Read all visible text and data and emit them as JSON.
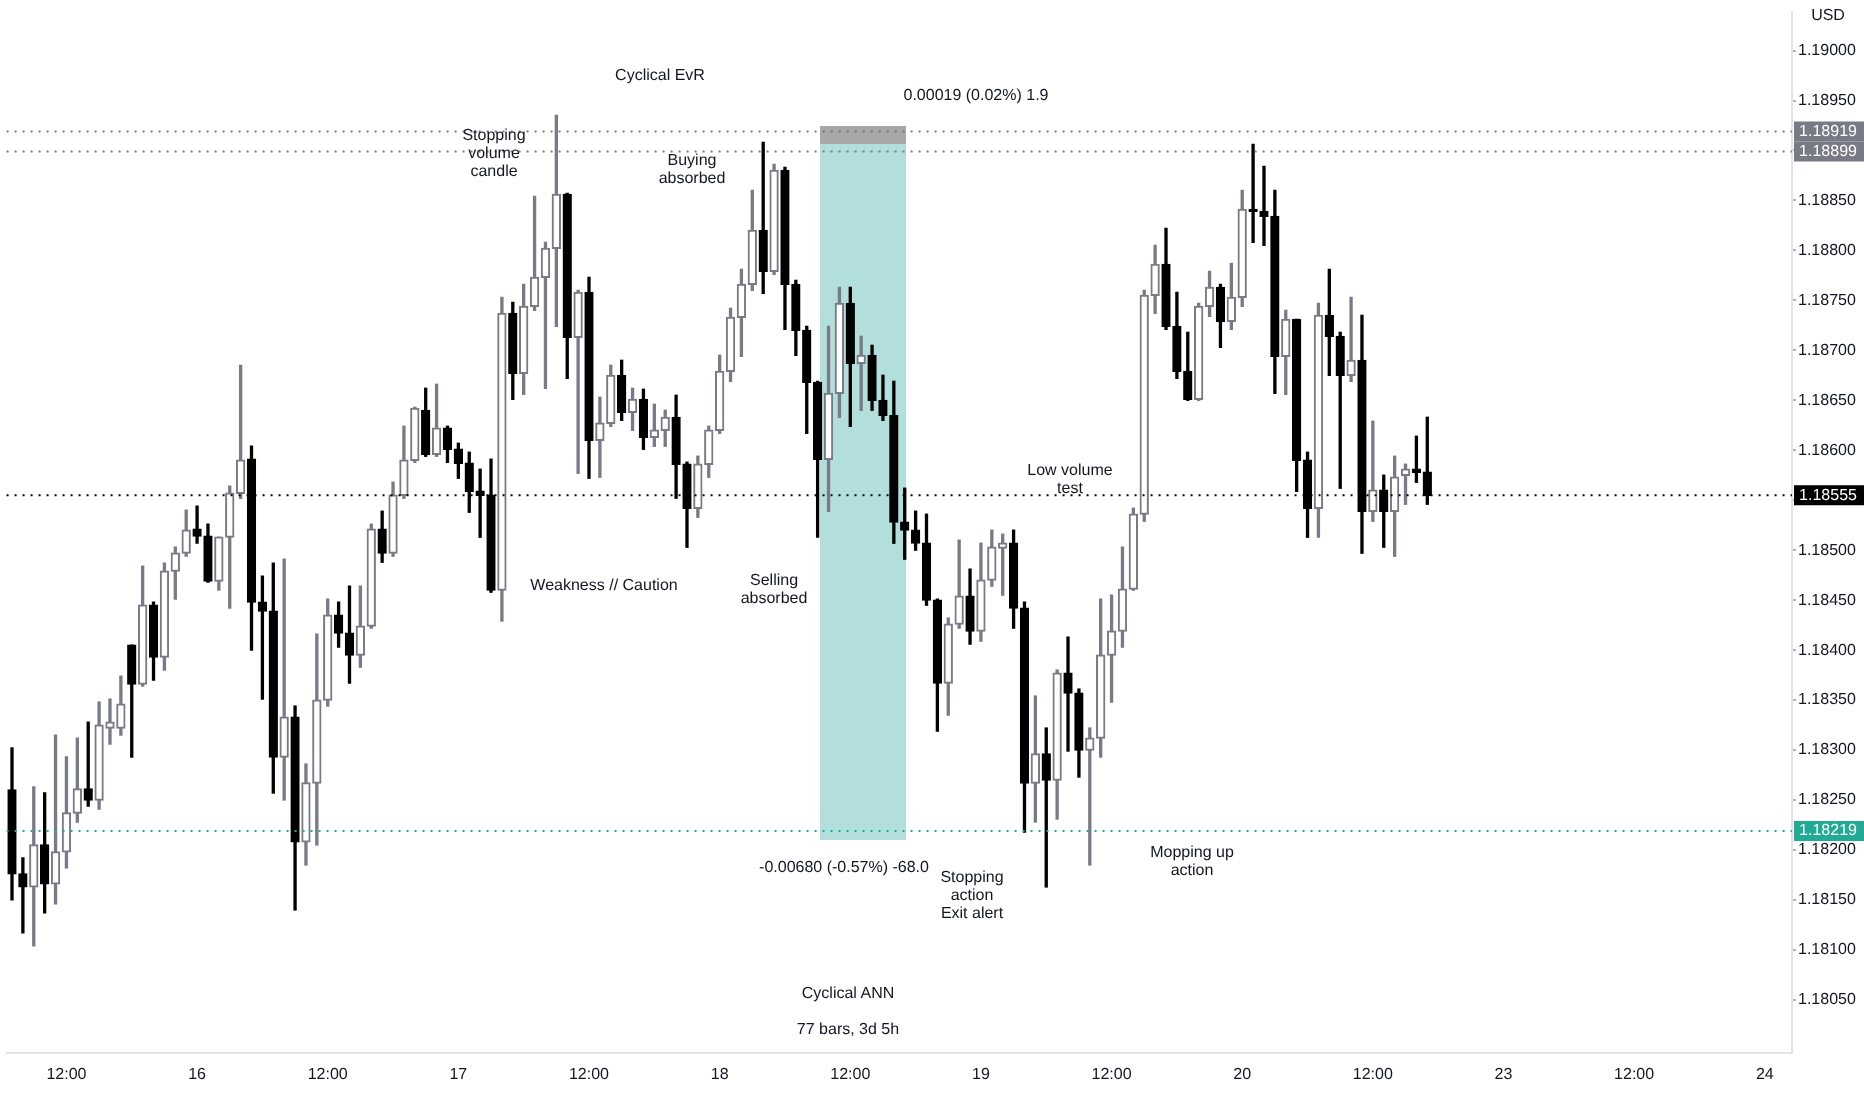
{
  "chart_data": {
    "type": "candlestick",
    "ylabel": "USD",
    "categories": [
      null,
      null,
      null,
      null,
      null,
      "12:00",
      null,
      null,
      null,
      null,
      null,
      null,
      null,
      null,
      null,
      null,
      null,
      "16",
      null,
      null,
      null,
      null,
      null,
      null,
      null,
      null,
      null,
      null,
      null,
      "12:00",
      null,
      null,
      null,
      null,
      null,
      null,
      null,
      null,
      null,
      null,
      null,
      "17",
      null,
      null,
      null,
      null,
      null,
      null,
      null,
      null,
      null,
      null,
      null,
      "12:00",
      null,
      null,
      null,
      null,
      null,
      null,
      null,
      null,
      null,
      null,
      null,
      "18",
      null,
      null,
      null,
      null,
      null,
      null,
      null,
      null,
      null,
      null,
      null,
      "12:00",
      null,
      null,
      null,
      null,
      null,
      null,
      null,
      null,
      null,
      null,
      null,
      "19",
      null,
      null,
      null,
      null,
      null,
      null,
      null,
      null,
      null,
      null,
      null,
      "12:00",
      null,
      null,
      null,
      null,
      null,
      null,
      null,
      null,
      null,
      null,
      null,
      "20",
      null,
      null,
      null,
      null,
      null,
      null,
      null,
      null,
      null,
      null,
      null,
      "12:00",
      null,
      null,
      null,
      null,
      null,
      null,
      null,
      null,
      null,
      null,
      null,
      "23",
      null,
      null,
      null,
      null,
      null,
      null,
      null,
      null,
      null,
      null,
      null,
      "12:00",
      null,
      null,
      null,
      null,
      null,
      null,
      null,
      null,
      null,
      null,
      null,
      "24",
      null,
      null
    ],
    "ohlc": [
      [
        1.1826,
        1.18302,
        1.1815,
        1.18176
      ],
      [
        1.18176,
        1.18192,
        1.18117,
        1.18163
      ],
      [
        1.18163,
        1.18263,
        1.18104,
        1.18205
      ],
      [
        1.18205,
        1.18257,
        1.18137,
        1.18166
      ],
      [
        1.18166,
        1.18315,
        1.18146,
        1.18198
      ],
      [
        1.18198,
        1.18293,
        1.18182,
        1.18237
      ],
      [
        1.18237,
        1.18312,
        1.18228,
        1.18261
      ],
      [
        1.18261,
        1.18328,
        1.18244,
        1.1825
      ],
      [
        1.1825,
        1.18348,
        1.18241,
        1.18325
      ],
      [
        1.18322,
        1.18351,
        1.18306,
        1.18328
      ],
      [
        1.18322,
        1.18374,
        1.18315,
        1.18346
      ],
      [
        1.18405,
        1.18405,
        1.18293,
        1.18366
      ],
      [
        1.18366,
        1.18484,
        1.18364,
        1.18445
      ],
      [
        1.18445,
        1.18448,
        1.1837,
        1.18393
      ],
      [
        1.18393,
        1.18487,
        1.1838,
        1.18479
      ],
      [
        1.18479,
        1.18503,
        1.18451,
        1.18497
      ],
      [
        1.18497,
        1.1854,
        1.18494,
        1.1852
      ],
      [
        1.18521,
        1.18544,
        1.18507,
        1.18514
      ],
      [
        1.18514,
        1.18526,
        1.18468,
        1.18469
      ],
      [
        1.18469,
        1.18513,
        1.1846,
        1.18513
      ],
      [
        1.18513,
        1.18564,
        1.18442,
        1.18557
      ],
      [
        1.18557,
        1.18685,
        1.18552,
        1.1859
      ],
      [
        1.18591,
        1.18604,
        1.184,
        1.18448
      ],
      [
        1.18448,
        1.18474,
        1.18351,
        1.18439
      ],
      [
        1.18439,
        1.18487,
        1.18257,
        1.18293
      ],
      [
        1.18293,
        1.18491,
        1.1825,
        1.18333
      ],
      [
        1.18333,
        1.18344,
        1.1814,
        1.18208
      ],
      [
        1.18208,
        1.18286,
        1.18185,
        1.18267
      ],
      [
        1.18267,
        1.18416,
        1.18205,
        1.1835
      ],
      [
        1.1835,
        1.18451,
        1.18344,
        1.18435
      ],
      [
        1.18435,
        1.18448,
        1.18403,
        1.18417
      ],
      [
        1.18417,
        1.18464,
        1.18367,
        1.18395
      ],
      [
        1.18395,
        1.18464,
        1.18383,
        1.18424
      ],
      [
        1.18424,
        1.18526,
        1.18422,
        1.18521
      ],
      [
        1.18521,
        1.18539,
        1.18488,
        1.18497
      ],
      [
        1.18497,
        1.18568,
        1.18494,
        1.18555
      ],
      [
        1.18555,
        1.18624,
        1.18552,
        1.1859
      ],
      [
        1.1859,
        1.18643,
        1.18588,
        1.18642
      ],
      [
        1.1864,
        1.18662,
        1.18594,
        1.18596
      ],
      [
        1.18596,
        1.18666,
        1.18594,
        1.18622
      ],
      [
        1.18622,
        1.18624,
        1.18588,
        1.18601
      ],
      [
        1.18601,
        1.18607,
        1.18572,
        1.18587
      ],
      [
        1.18587,
        1.18598,
        1.18538,
        1.18559
      ],
      [
        1.18559,
        1.18581,
        1.18513,
        1.18555
      ],
      [
        1.18555,
        1.18591,
        1.18458,
        1.1846
      ],
      [
        1.1846,
        1.18753,
        1.18429,
        1.18737
      ],
      [
        1.18737,
        1.18748,
        1.18651,
        1.18677
      ],
      [
        1.18677,
        1.18766,
        1.18656,
        1.18744
      ],
      [
        1.18744,
        1.18854,
        1.1874,
        1.18773
      ],
      [
        1.18773,
        1.18808,
        1.18662,
        1.18802
      ],
      [
        1.18802,
        1.18935,
        1.18724,
        1.18856
      ],
      [
        1.18856,
        1.18857,
        1.18672,
        1.18713
      ],
      [
        1.18713,
        1.1876,
        1.18577,
        1.18758
      ],
      [
        1.18758,
        1.18773,
        1.18572,
        1.1861
      ],
      [
        1.1861,
        1.18653,
        1.18573,
        1.18627
      ],
      [
        1.18627,
        1.18685,
        1.18624,
        1.18675
      ],
      [
        1.18675,
        1.1869,
        1.1863,
        1.18638
      ],
      [
        1.18638,
        1.18662,
        1.1862,
        1.18651
      ],
      [
        1.18651,
        1.18661,
        1.18601,
        1.18613
      ],
      [
        1.18613,
        1.18646,
        1.18604,
        1.1862
      ],
      [
        1.1862,
        1.1864,
        1.18604,
        1.18633
      ],
      [
        1.18633,
        1.18655,
        1.18552,
        1.18586
      ],
      [
        1.18586,
        1.18588,
        1.18503,
        1.18542
      ],
      [
        1.18542,
        1.18594,
        1.18533,
        1.18586
      ],
      [
        1.18586,
        1.18624,
        1.18573,
        1.1862
      ],
      [
        1.1862,
        1.18695,
        1.18617,
        1.18679
      ],
      [
        1.18679,
        1.18742,
        1.18669,
        1.18733
      ],
      [
        1.18733,
        1.18781,
        1.18694,
        1.18766
      ],
      [
        1.18766,
        1.1886,
        1.1876,
        1.1882
      ],
      [
        1.1882,
        1.18908,
        1.18757,
        1.18779
      ],
      [
        1.18779,
        1.18886,
        1.18776,
        1.1888
      ],
      [
        1.1888,
        1.18883,
        1.18721,
        1.18766
      ],
      [
        1.18766,
        1.1877,
        1.18695,
        1.1872
      ],
      [
        1.1872,
        1.18724,
        1.18617,
        1.18668
      ],
      [
        1.18668,
        1.18669,
        1.18513,
        1.18591
      ],
      [
        1.18591,
        1.18724,
        1.18539,
        1.18657
      ],
      [
        1.18657,
        1.18763,
        1.18633,
        1.18747
      ],
      [
        1.18747,
        1.18763,
        1.18624,
        1.18687
      ],
      [
        1.18687,
        1.18714,
        1.1864,
        1.18695
      ],
      [
        1.18695,
        1.18705,
        1.1864,
        1.1865
      ],
      [
        1.1865,
        1.18675,
        1.1863,
        1.18635
      ],
      [
        1.18635,
        1.18669,
        1.18507,
        1.18528
      ],
      [
        1.18528,
        1.18562,
        1.18491,
        1.1852
      ],
      [
        1.1852,
        1.18539,
        1.185,
        1.18507
      ],
      [
        1.18507,
        1.18536,
        1.18445,
        1.1845
      ],
      [
        1.1845,
        1.18451,
        1.18319,
        1.18367
      ],
      [
        1.18367,
        1.18432,
        1.18335,
        1.18426
      ],
      [
        1.18426,
        1.1851,
        1.18422,
        1.18454
      ],
      [
        1.18454,
        1.18481,
        1.18406,
        1.18419
      ],
      [
        1.18419,
        1.18507,
        1.18409,
        1.1847
      ],
      [
        1.1847,
        1.1852,
        1.18464,
        1.18503
      ],
      [
        1.18502,
        1.18516,
        1.18455,
        1.18507
      ],
      [
        1.18507,
        1.1852,
        1.18422,
        1.18442
      ],
      [
        1.18442,
        1.18448,
        1.18218,
        1.18267
      ],
      [
        1.18267,
        1.18354,
        1.18228,
        1.18296
      ],
      [
        1.18296,
        1.18322,
        1.18163,
        1.1827
      ],
      [
        1.1827,
        1.1838,
        1.18231,
        1.18377
      ],
      [
        1.18377,
        1.18413,
        1.18299,
        1.18357
      ],
      [
        1.18357,
        1.18361,
        1.18273,
        1.183
      ],
      [
        1.183,
        1.18322,
        1.18185,
        1.18312
      ],
      [
        1.18312,
        1.18451,
        1.18293,
        1.18395
      ],
      [
        1.18395,
        1.18455,
        1.18348,
        1.18419
      ],
      [
        1.18419,
        1.18503,
        1.18403,
        1.18461
      ],
      [
        1.18461,
        1.18542,
        1.1846,
        1.18536
      ],
      [
        1.18536,
        1.1876,
        1.18529,
        1.18755
      ],
      [
        1.18755,
        1.18805,
        1.18737,
        1.18786
      ],
      [
        1.18786,
        1.18822,
        1.18721,
        1.18724
      ],
      [
        1.18724,
        1.18758,
        1.18672,
        1.18679
      ],
      [
        1.18679,
        1.18718,
        1.1865,
        1.18651
      ],
      [
        1.18651,
        1.18747,
        1.1865,
        1.18744
      ],
      [
        1.18744,
        1.18779,
        1.18734,
        1.18763
      ],
      [
        1.18763,
        1.18766,
        1.18703,
        1.18729
      ],
      [
        1.18729,
        1.18787,
        1.18721,
        1.18753
      ],
      [
        1.18753,
        1.1886,
        1.18744,
        1.18841
      ],
      [
        1.18841,
        1.18906,
        1.18808,
        1.18839
      ],
      [
        1.18839,
        1.18884,
        1.18805,
        1.18834
      ],
      [
        1.18834,
        1.1886,
        1.18657,
        1.18694
      ],
      [
        1.18694,
        1.1874,
        1.18656,
        1.18731
      ],
      [
        1.18731,
        1.18731,
        1.18559,
        1.1859
      ],
      [
        1.1859,
        1.18598,
        1.18513,
        1.18542
      ],
      [
        1.18542,
        1.18747,
        1.18513,
        1.18735
      ],
      [
        1.18735,
        1.18781,
        1.18675,
        1.18714
      ],
      [
        1.18714,
        1.18718,
        1.18562,
        1.18675
      ],
      [
        1.18675,
        1.18753,
        1.18669,
        1.1869
      ],
      [
        1.1869,
        1.18735,
        1.18497,
        1.18539
      ],
      [
        1.18539,
        1.18629,
        1.18529,
        1.1856
      ],
      [
        1.1856,
        1.18575,
        1.18503,
        1.18539
      ],
      [
        1.18539,
        1.18594,
        1.18494,
        1.18573
      ],
      [
        1.18575,
        1.18586,
        1.18546,
        1.18581
      ],
      [
        1.18581,
        1.18614,
        1.18568,
        1.18578
      ],
      [
        1.18578,
        1.18633,
        1.18546,
        1.18555
      ],
      null,
      null,
      null,
      null,
      null,
      null,
      null,
      null,
      null,
      null,
      null,
      null,
      null,
      null,
      null,
      null,
      null,
      null,
      null,
      null,
      null,
      null,
      null,
      null,
      null,
      null,
      null,
      null,
      null,
      null,
      null,
      null,
      null
    ],
    "ylim": [
      1.17997,
      1.19039
    ],
    "yticks": [
      {
        "value": 1.1805,
        "label": "1.18050"
      },
      {
        "value": 1.181,
        "label": "1.18100"
      },
      {
        "value": 1.1815,
        "label": "1.18150"
      },
      {
        "value": 1.182,
        "label": "1.18200"
      },
      {
        "value": 1.1825,
        "label": "1.18250"
      },
      {
        "value": 1.183,
        "label": "1.18300"
      },
      {
        "value": 1.1835,
        "label": "1.18350"
      },
      {
        "value": 1.184,
        "label": "1.18400"
      },
      {
        "value": 1.1845,
        "label": "1.18450"
      },
      {
        "value": 1.185,
        "label": "1.18500"
      },
      {
        "value": 1.1855,
        "label": null
      },
      {
        "value": 1.186,
        "label": "1.18600"
      },
      {
        "value": 1.1865,
        "label": "1.18650"
      },
      {
        "value": 1.187,
        "label": "1.18700"
      },
      {
        "value": 1.1875,
        "label": "1.18750"
      },
      {
        "value": 1.188,
        "label": "1.18800"
      },
      {
        "value": 1.1885,
        "label": "1.18850"
      },
      {
        "value": 1.189,
        "label": null
      },
      {
        "value": 1.1895,
        "label": "1.18950"
      },
      {
        "value": 1.19,
        "label": "1.19000"
      }
    ],
    "ref_lines": [
      {
        "axis": "y",
        "value": 1.18919,
        "label": "1.18919",
        "color": "#787b86",
        "line_style": "dotted"
      },
      {
        "axis": "y",
        "value": 1.18899,
        "label": "1.18899",
        "color": "#787b86",
        "line_style": "dotted"
      },
      {
        "axis": "y",
        "value": 1.18555,
        "label": "1.18555",
        "color": "#000000",
        "line_style": "dotted"
      },
      {
        "axis": "y",
        "value": 1.18219,
        "label": "1.18219",
        "color": "#22ab94",
        "line_style": "dotted"
      }
    ],
    "annotations": [
      "Cyclical EvR",
      "Stopping\nvolume\ncandle",
      "Buying\nabsorbed",
      "Weakness // Caution",
      "Selling\nabsorbed",
      "0.00019 (0.02%) 1.9",
      "-0.00680 (-0.57%) -68.0",
      "Low volume\ntest",
      "Stopping\naction\nExit alert",
      "Mopping up\naction",
      "Cyclical ANN",
      "77 bars, 3d 5h"
    ]
  }
}
